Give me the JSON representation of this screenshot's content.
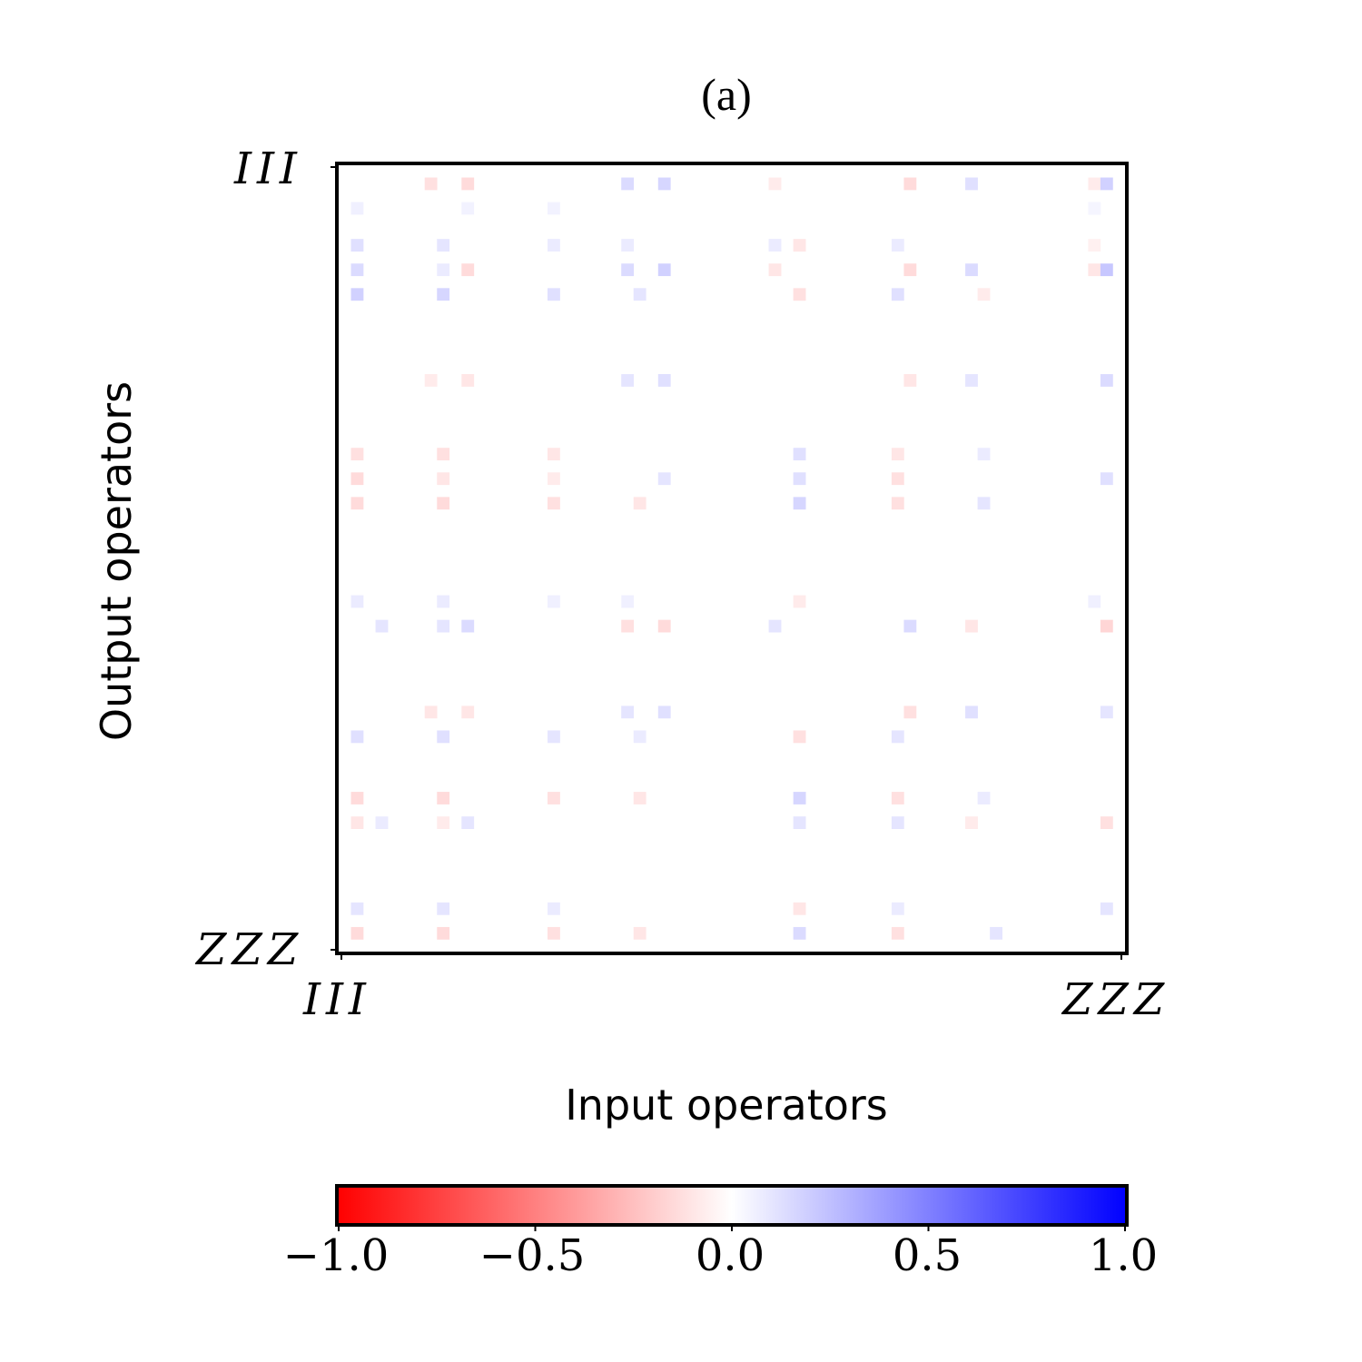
{
  "chart_data": {
    "type": "heatmap",
    "title": "(a)",
    "xlabel": "Input operators",
    "ylabel": "Output operators",
    "x_ticklabels": [
      "III",
      "ZZZ"
    ],
    "y_ticklabels": [
      "III",
      "ZZZ"
    ],
    "rows": 64,
    "cols": 64,
    "colormap": "bwr",
    "colormap_endpoints": {
      "min": "#ff0000",
      "mid": "#ffffff",
      "max": "#0000ff"
    },
    "vmin": -1.0,
    "vmax": 1.0,
    "colorbar": {
      "orientation": "horizontal",
      "placement": "bottom",
      "ticks": [
        -1.0,
        -0.5,
        0.0,
        0.5,
        1.0
      ],
      "ticklabels": [
        "−1.0",
        "−0.5",
        "0.0",
        "0.5",
        "1.0"
      ]
    },
    "nonzero_cells": [
      {
        "r": 1,
        "c": 7,
        "v": -0.12
      },
      {
        "r": 1,
        "c": 10,
        "v": -0.14
      },
      {
        "r": 1,
        "c": 23,
        "v": 0.14
      },
      {
        "r": 1,
        "c": 26,
        "v": 0.16
      },
      {
        "r": 1,
        "c": 35,
        "v": -0.08
      },
      {
        "r": 1,
        "c": 46,
        "v": -0.14
      },
      {
        "r": 1,
        "c": 51,
        "v": 0.12
      },
      {
        "r": 1,
        "c": 61,
        "v": -0.08
      },
      {
        "r": 1,
        "c": 62,
        "v": 0.18
      },
      {
        "r": 3,
        "c": 1,
        "v": 0.06
      },
      {
        "r": 3,
        "c": 10,
        "v": 0.05
      },
      {
        "r": 3,
        "c": 17,
        "v": 0.05
      },
      {
        "r": 3,
        "c": 61,
        "v": 0.04
      },
      {
        "r": 6,
        "c": 1,
        "v": 0.12
      },
      {
        "r": 6,
        "c": 8,
        "v": 0.1
      },
      {
        "r": 6,
        "c": 17,
        "v": 0.08
      },
      {
        "r": 6,
        "c": 23,
        "v": 0.08
      },
      {
        "r": 6,
        "c": 35,
        "v": 0.08
      },
      {
        "r": 6,
        "c": 37,
        "v": -0.1
      },
      {
        "r": 6,
        "c": 45,
        "v": 0.08
      },
      {
        "r": 6,
        "c": 61,
        "v": -0.06
      },
      {
        "r": 8,
        "c": 1,
        "v": 0.14
      },
      {
        "r": 8,
        "c": 8,
        "v": 0.08
      },
      {
        "r": 8,
        "c": 10,
        "v": -0.14
      },
      {
        "r": 8,
        "c": 23,
        "v": 0.14
      },
      {
        "r": 8,
        "c": 26,
        "v": 0.18
      },
      {
        "r": 8,
        "c": 35,
        "v": -0.1
      },
      {
        "r": 8,
        "c": 46,
        "v": -0.14
      },
      {
        "r": 8,
        "c": 51,
        "v": 0.14
      },
      {
        "r": 8,
        "c": 61,
        "v": -0.1
      },
      {
        "r": 8,
        "c": 62,
        "v": 0.22
      },
      {
        "r": 10,
        "c": 1,
        "v": 0.18
      },
      {
        "r": 10,
        "c": 8,
        "v": 0.16
      },
      {
        "r": 10,
        "c": 17,
        "v": 0.12
      },
      {
        "r": 10,
        "c": 24,
        "v": 0.1
      },
      {
        "r": 10,
        "c": 37,
        "v": -0.12
      },
      {
        "r": 10,
        "c": 45,
        "v": 0.12
      },
      {
        "r": 10,
        "c": 52,
        "v": -0.08
      },
      {
        "r": 17,
        "c": 7,
        "v": -0.08
      },
      {
        "r": 17,
        "c": 10,
        "v": -0.1
      },
      {
        "r": 17,
        "c": 23,
        "v": 0.1
      },
      {
        "r": 17,
        "c": 26,
        "v": 0.12
      },
      {
        "r": 17,
        "c": 46,
        "v": -0.1
      },
      {
        "r": 17,
        "c": 51,
        "v": 0.1
      },
      {
        "r": 17,
        "c": 62,
        "v": 0.14
      },
      {
        "r": 23,
        "c": 1,
        "v": -0.12
      },
      {
        "r": 23,
        "c": 8,
        "v": -0.12
      },
      {
        "r": 23,
        "c": 17,
        "v": -0.1
      },
      {
        "r": 23,
        "c": 37,
        "v": 0.12
      },
      {
        "r": 23,
        "c": 45,
        "v": -0.1
      },
      {
        "r": 23,
        "c": 52,
        "v": 0.08
      },
      {
        "r": 25,
        "c": 1,
        "v": -0.14
      },
      {
        "r": 25,
        "c": 8,
        "v": -0.1
      },
      {
        "r": 25,
        "c": 17,
        "v": -0.08
      },
      {
        "r": 25,
        "c": 26,
        "v": 0.1
      },
      {
        "r": 25,
        "c": 37,
        "v": 0.12
      },
      {
        "r": 25,
        "c": 45,
        "v": -0.12
      },
      {
        "r": 25,
        "c": 62,
        "v": 0.12
      },
      {
        "r": 27,
        "c": 1,
        "v": -0.14
      },
      {
        "r": 27,
        "c": 8,
        "v": -0.14
      },
      {
        "r": 27,
        "c": 17,
        "v": -0.12
      },
      {
        "r": 27,
        "c": 24,
        "v": -0.1
      },
      {
        "r": 27,
        "c": 37,
        "v": 0.16
      },
      {
        "r": 27,
        "c": 45,
        "v": -0.12
      },
      {
        "r": 27,
        "c": 52,
        "v": 0.1
      },
      {
        "r": 35,
        "c": 1,
        "v": 0.08
      },
      {
        "r": 35,
        "c": 8,
        "v": 0.08
      },
      {
        "r": 35,
        "c": 17,
        "v": 0.06
      },
      {
        "r": 35,
        "c": 23,
        "v": 0.06
      },
      {
        "r": 35,
        "c": 37,
        "v": -0.08
      },
      {
        "r": 35,
        "c": 61,
        "v": 0.06
      },
      {
        "r": 37,
        "c": 3,
        "v": 0.1
      },
      {
        "r": 37,
        "c": 8,
        "v": 0.1
      },
      {
        "r": 37,
        "c": 10,
        "v": 0.14
      },
      {
        "r": 37,
        "c": 23,
        "v": -0.12
      },
      {
        "r": 37,
        "c": 26,
        "v": -0.14
      },
      {
        "r": 37,
        "c": 35,
        "v": 0.1
      },
      {
        "r": 37,
        "c": 46,
        "v": 0.14
      },
      {
        "r": 37,
        "c": 51,
        "v": -0.1
      },
      {
        "r": 37,
        "c": 62,
        "v": -0.16
      },
      {
        "r": 44,
        "c": 7,
        "v": -0.1
      },
      {
        "r": 44,
        "c": 10,
        "v": -0.1
      },
      {
        "r": 44,
        "c": 23,
        "v": 0.1
      },
      {
        "r": 44,
        "c": 26,
        "v": 0.12
      },
      {
        "r": 44,
        "c": 46,
        "v": -0.12
      },
      {
        "r": 44,
        "c": 51,
        "v": 0.12
      },
      {
        "r": 44,
        "c": 62,
        "v": 0.1
      },
      {
        "r": 46,
        "c": 1,
        "v": 0.12
      },
      {
        "r": 46,
        "c": 8,
        "v": 0.12
      },
      {
        "r": 46,
        "c": 17,
        "v": 0.1
      },
      {
        "r": 46,
        "c": 24,
        "v": 0.08
      },
      {
        "r": 46,
        "c": 37,
        "v": -0.12
      },
      {
        "r": 46,
        "c": 45,
        "v": 0.1
      },
      {
        "r": 51,
        "c": 1,
        "v": -0.14
      },
      {
        "r": 51,
        "c": 8,
        "v": -0.14
      },
      {
        "r": 51,
        "c": 17,
        "v": -0.12
      },
      {
        "r": 51,
        "c": 24,
        "v": -0.1
      },
      {
        "r": 51,
        "c": 37,
        "v": 0.16
      },
      {
        "r": 51,
        "c": 45,
        "v": -0.12
      },
      {
        "r": 51,
        "c": 52,
        "v": 0.08
      },
      {
        "r": 53,
        "c": 1,
        "v": -0.1
      },
      {
        "r": 53,
        "c": 3,
        "v": 0.08
      },
      {
        "r": 53,
        "c": 8,
        "v": -0.08
      },
      {
        "r": 53,
        "c": 10,
        "v": 0.1
      },
      {
        "r": 53,
        "c": 37,
        "v": 0.1
      },
      {
        "r": 53,
        "c": 45,
        "v": 0.1
      },
      {
        "r": 53,
        "c": 51,
        "v": -0.08
      },
      {
        "r": 53,
        "c": 62,
        "v": -0.12
      },
      {
        "r": 60,
        "c": 1,
        "v": 0.1
      },
      {
        "r": 60,
        "c": 8,
        "v": 0.1
      },
      {
        "r": 60,
        "c": 17,
        "v": 0.08
      },
      {
        "r": 60,
        "c": 37,
        "v": -0.1
      },
      {
        "r": 60,
        "c": 45,
        "v": 0.08
      },
      {
        "r": 60,
        "c": 62,
        "v": 0.1
      },
      {
        "r": 62,
        "c": 1,
        "v": -0.14
      },
      {
        "r": 62,
        "c": 8,
        "v": -0.14
      },
      {
        "r": 62,
        "c": 17,
        "v": -0.12
      },
      {
        "r": 62,
        "c": 24,
        "v": -0.1
      },
      {
        "r": 62,
        "c": 37,
        "v": 0.14
      },
      {
        "r": 62,
        "c": 45,
        "v": -0.12
      },
      {
        "r": 62,
        "c": 53,
        "v": 0.1
      }
    ]
  }
}
